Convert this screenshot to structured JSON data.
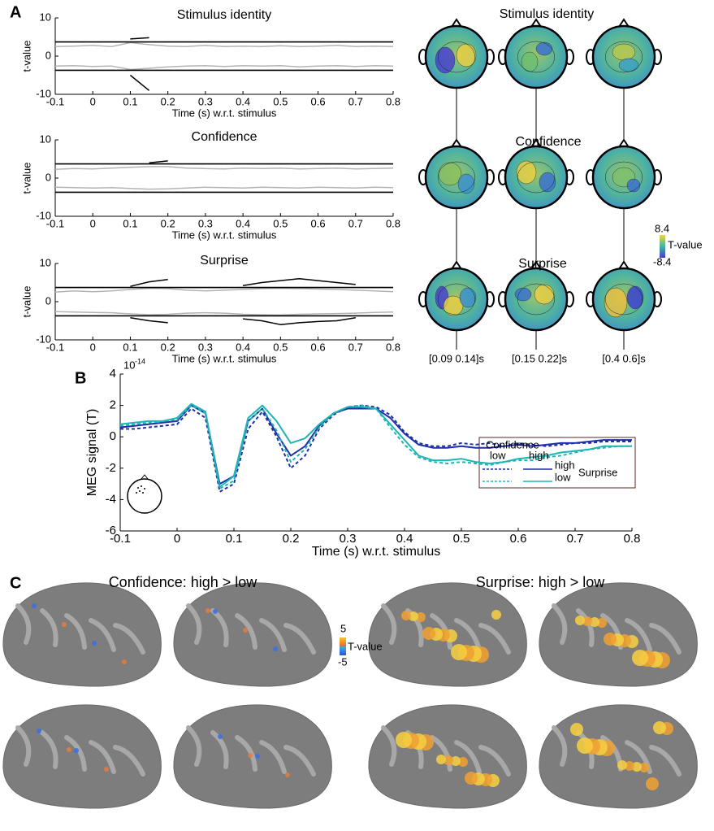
{
  "panels": [
    "A",
    "B",
    "C"
  ],
  "chart_data": [
    {
      "type": "line",
      "title": "Stimulus identity",
      "xlabel": "Time (s) w.r.t. stimulus",
      "ylabel": "t-value",
      "x": [
        -0.1,
        -0.05,
        0,
        0.05,
        0.1,
        0.15,
        0.2,
        0.25,
        0.3,
        0.35,
        0.4,
        0.45,
        0.5,
        0.55,
        0.6,
        0.65,
        0.7,
        0.75,
        0.8
      ],
      "series": [
        {
          "color": "#b4b4b4",
          "values": [
            2.5,
            2.6,
            2.8,
            2.5,
            3.5,
            3,
            2.6,
            2.5,
            2.8,
            2.5,
            2.6,
            2.5,
            2.7,
            2.5,
            2.6,
            2.8,
            2.5,
            2.6,
            2.5
          ]
        },
        {
          "color": "#b4b4b4",
          "values": [
            -2.6,
            -2.5,
            -2.7,
            -2.6,
            -3.5,
            -3.2,
            -2.8,
            -2.6,
            -2.5,
            -2.7,
            -2.5,
            -2.6,
            -2.5,
            -2.8,
            -2.6,
            -2.5,
            -2.7,
            -2.5,
            -2.6
          ]
        },
        {
          "color": "#000000",
          "values": [
            null,
            null,
            null,
            null,
            4.5,
            4.8,
            null,
            null,
            null,
            null,
            null,
            null,
            null,
            null,
            null,
            null,
            null,
            null,
            null
          ]
        },
        {
          "color": "#000000",
          "values": [
            null,
            null,
            null,
            null,
            -5,
            -9,
            null,
            null,
            null,
            null,
            null,
            null,
            null,
            null,
            null,
            null,
            null,
            null,
            null
          ]
        }
      ],
      "hlines": [
        3.7,
        -3.7
      ],
      "xlim": [
        -0.1,
        0.8
      ],
      "ylim": [
        -10,
        10
      ],
      "xticks": [
        -0.1,
        0,
        0.1,
        0.2,
        0.3,
        0.4,
        0.5,
        0.6,
        0.7,
        0.8
      ],
      "yticks": [
        -10,
        0,
        10
      ]
    },
    {
      "type": "line",
      "title": "Confidence",
      "xlabel": "Time (s) w.r.t. stimulus",
      "ylabel": "t-value",
      "x": [
        -0.1,
        -0.05,
        0,
        0.05,
        0.1,
        0.15,
        0.2,
        0.25,
        0.3,
        0.35,
        0.4,
        0.45,
        0.5,
        0.55,
        0.6,
        0.65,
        0.7,
        0.75,
        0.8
      ],
      "series": [
        {
          "color": "#b4b4b4",
          "values": [
            2.3,
            2.5,
            2.4,
            2.6,
            2.8,
            3,
            3,
            2.6,
            2.5,
            2.4,
            2.6,
            2.5,
            2.6,
            2.4,
            2.5,
            2.6,
            2.4,
            2.5,
            2.6
          ]
        },
        {
          "color": "#b4b4b4",
          "values": [
            -2.4,
            -2.5,
            -2.6,
            -2.5,
            -2.7,
            -2.9,
            -2.8,
            -2.6,
            -2.4,
            -2.5,
            -2.6,
            -2.4,
            -2.5,
            -2.6,
            -2.4,
            -2.5,
            -2.6,
            -2.4,
            -2.5
          ]
        },
        {
          "color": "#000000",
          "values": [
            null,
            null,
            null,
            null,
            null,
            4,
            4.5,
            null,
            null,
            null,
            null,
            null,
            null,
            null,
            null,
            null,
            null,
            null,
            null
          ]
        }
      ],
      "hlines": [
        3.7,
        -3.7
      ],
      "xlim": [
        -0.1,
        0.8
      ],
      "ylim": [
        -10,
        10
      ],
      "xticks": [
        -0.1,
        0,
        0.1,
        0.2,
        0.3,
        0.4,
        0.5,
        0.6,
        0.7,
        0.8
      ],
      "yticks": [
        -10,
        0,
        10
      ]
    },
    {
      "type": "line",
      "title": "Surprise",
      "xlabel": "Time (s) w.r.t. stimulus",
      "ylabel": "t-value",
      "x": [
        -0.1,
        -0.05,
        0,
        0.05,
        0.1,
        0.15,
        0.2,
        0.25,
        0.3,
        0.35,
        0.4,
        0.45,
        0.5,
        0.55,
        0.6,
        0.65,
        0.7,
        0.75,
        0.8
      ],
      "series": [
        {
          "color": "#b4b4b4",
          "values": [
            2.5,
            2.8,
            2.6,
            2.8,
            3.2,
            3.5,
            3.4,
            3,
            2.8,
            3,
            3.2,
            3.4,
            3.5,
            3.4,
            3.3,
            3.2,
            3,
            2.8,
            2.6
          ]
        },
        {
          "color": "#b4b4b4",
          "values": [
            -2.6,
            -2.7,
            -2.8,
            -2.9,
            -3.2,
            -3.4,
            -3.3,
            -3,
            -2.9,
            -3,
            -3.3,
            -3.4,
            -3.5,
            -3.3,
            -3.2,
            -3.1,
            -3,
            -2.8,
            -2.7
          ]
        },
        {
          "color": "#000000",
          "values": [
            null,
            null,
            null,
            null,
            4,
            5.2,
            5.8,
            null,
            null,
            null,
            4.2,
            5,
            5.5,
            6,
            5.5,
            5,
            4.5,
            null,
            null
          ]
        },
        {
          "color": "#000000",
          "values": [
            null,
            null,
            null,
            null,
            -4.2,
            -5,
            -5.5,
            null,
            null,
            null,
            -4.5,
            -5,
            -6,
            -5.5,
            -5.2,
            -5,
            -4.2,
            null,
            null
          ]
        }
      ],
      "hlines": [
        3.7,
        -3.7
      ],
      "xlim": [
        -0.1,
        0.8
      ],
      "ylim": [
        -10,
        10
      ],
      "xticks": [
        -0.1,
        0,
        0.1,
        0.2,
        0.3,
        0.4,
        0.5,
        0.6,
        0.7,
        0.8
      ],
      "yticks": [
        -10,
        0,
        10
      ]
    },
    {
      "type": "line",
      "xlabel": "Time (s) w.r.t. stimulus",
      "ylabel": "MEG signal (T)",
      "y_exponent_base": "10",
      "y_exponent_power": "-14",
      "x": [
        -0.1,
        -0.075,
        -0.05,
        -0.025,
        0,
        0.025,
        0.05,
        0.075,
        0.1,
        0.125,
        0.15,
        0.175,
        0.2,
        0.225,
        0.25,
        0.275,
        0.3,
        0.325,
        0.35,
        0.375,
        0.4,
        0.425,
        0.45,
        0.475,
        0.5,
        0.525,
        0.55,
        0.575,
        0.6,
        0.625,
        0.65,
        0.675,
        0.7,
        0.725,
        0.75,
        0.775,
        0.8
      ],
      "series": [
        {
          "color": "#1f2fa8",
          "dashed": true,
          "values": [
            0.5,
            0.5,
            0.6,
            0.7,
            0.8,
            1.8,
            1.2,
            -3.5,
            -3.0,
            0.5,
            1.6,
            0.0,
            -2.0,
            -1.2,
            0.5,
            1.4,
            1.9,
            2.0,
            1.9,
            1.4,
            0.3,
            -0.4,
            -0.6,
            -0.6,
            -0.4,
            -0.5,
            -0.4,
            -0.6,
            -0.4,
            -0.5,
            -0.6,
            -0.5,
            -0.4,
            -0.4,
            -0.3,
            -0.3,
            -0.3
          ]
        },
        {
          "color": "#1f2fa8",
          "dashed": false,
          "values": [
            0.6,
            0.7,
            0.8,
            0.9,
            1.0,
            2.0,
            1.5,
            -3.0,
            -2.5,
            1.0,
            1.8,
            0.2,
            -1.2,
            -0.6,
            0.7,
            1.5,
            1.8,
            1.8,
            1.8,
            1.2,
            0.2,
            -0.5,
            -0.7,
            -0.7,
            -0.6,
            -0.7,
            -0.7,
            -0.6,
            -0.5,
            -0.6,
            -0.5,
            -0.4,
            -0.4,
            -0.3,
            -0.2,
            -0.2,
            -0.2
          ]
        },
        {
          "color": "#1fb5b5",
          "dashed": true,
          "values": [
            0.7,
            0.8,
            0.9,
            1.0,
            1.1,
            2.0,
            1.5,
            -3.3,
            -2.8,
            1.0,
            1.8,
            0.4,
            -1.6,
            -0.8,
            0.6,
            1.5,
            1.9,
            2.0,
            1.8,
            0.6,
            -0.5,
            -1.3,
            -1.6,
            -1.7,
            -1.6,
            -1.7,
            -1.8,
            -1.6,
            -1.5,
            -1.5,
            -1.3,
            -1.2,
            -1.0,
            -0.8,
            -0.7,
            -0.6,
            -0.6
          ]
        },
        {
          "color": "#1fb5b5",
          "dashed": false,
          "values": [
            0.8,
            0.9,
            1.0,
            1.0,
            1.2,
            2.1,
            1.6,
            -3.2,
            -2.5,
            1.2,
            2.0,
            1.0,
            -0.4,
            -0.1,
            0.8,
            1.5,
            1.9,
            1.9,
            1.8,
            0.8,
            -0.2,
            -1.2,
            -1.5,
            -1.5,
            -1.4,
            -1.6,
            -1.7,
            -1.6,
            -1.4,
            -1.3,
            -1.2,
            -1.0,
            -0.9,
            -0.8,
            -0.6,
            -0.6,
            -0.6
          ]
        }
      ],
      "legend": {
        "header": "Confidence",
        "col_labels": [
          "low",
          "high"
        ],
        "row_labels": [
          "high",
          "low"
        ],
        "row_title": "Surprise"
      },
      "xlim": [
        -0.1,
        0.8
      ],
      "ylim": [
        -6,
        4
      ],
      "xticks": [
        -0.1,
        0,
        0.1,
        0.2,
        0.3,
        0.4,
        0.5,
        0.6,
        0.7,
        0.8
      ],
      "yticks": [
        -6,
        -4,
        -2,
        0,
        2,
        4
      ]
    }
  ],
  "topomaps": {
    "titles": [
      "Stimulus identity",
      "Confidence",
      "Surprise"
    ],
    "windows": [
      "[0.09 0.14]s",
      "[0.15 0.22]s",
      "[0.4 0.6]s"
    ],
    "colorbar": {
      "ticks": [
        8.4,
        -8.4
      ],
      "label": "T-value"
    }
  },
  "brains": {
    "titles": [
      "Confidence: high > low",
      "Surprise: high > low"
    ],
    "colorbar": {
      "ticks": [
        5,
        -5
      ],
      "label": "T-value"
    }
  }
}
